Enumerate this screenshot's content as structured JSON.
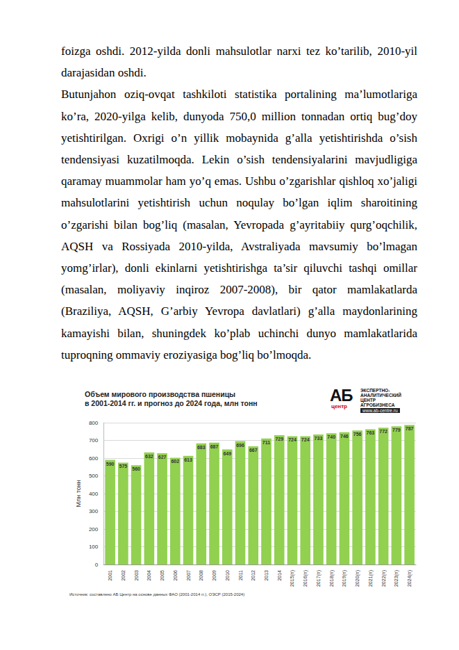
{
  "paragraphs": [
    "foizga oshdi. 2012-yilda donli mahsulotlar narxi tez ko’tarilib, 2010-yil darajasidan oshdi.",
    "Butunjahon oziq-ovqat tashkiloti statistika portalining ma’lumotlariga ko’ra, 2020-yilga kelib, dunyoda 750,0 million tonnadan ortiq bug’doy yetishtirilgan. Oxrigi o’n yillik mobaynida g’alla yetishtirishda o’sish tendensiyasi kuzatilmoqda. Lekin o’sish tendensiyalarini mavjudligiga qaramay muammolar ham yo’q emas. Ushbu o’zgarishlar qishloq xo’jaligi mahsulotlarini yetishtirish uchun noqulay bo’lgan iqlim sharoitining o’zgarishi bilan bog’liq (masalan, Yevropada g’ayritabiiy qurg’oqchilik, AQSH va Rossiyada 2010-yilda, Avstraliyada mavsumiy bo’lmagan yomg’irlar), donli ekinlarni yetishtirishga ta’sir qiluvchi tashqi omillar (masalan, moliyaviy inqiroz 2007-2008), bir qator mamlakatlarda (Braziliya, AQSH, G’arbiy Yevropa davlatlari) g’alla maydonlarining kamayishi bilan, shuningdek ko’plab uchinchi dunyo mamlakatlarida tuproqning ommaviy eroziyasiga bog’liq bo’lmoqda."
  ],
  "chart_data": {
    "type": "bar",
    "title": "Объем мирового производства пшеницы\nв 2001-2014 гг. и прогноз до 2024 года, млн тонн",
    "logo": {
      "mark": "АБ",
      "sub": "центр",
      "lines": [
        "ЭКСПЕРТНО-",
        "АНАЛИТИЧЕСКИЙ",
        "ЦЕНТР",
        "АГРОБИЗНЕСА"
      ],
      "url": "www.ab-centre.ru"
    },
    "ylabel": "Млн тонн",
    "categories": [
      "2001",
      "2002",
      "2003",
      "2004",
      "2005",
      "2006",
      "2007",
      "2008",
      "2009",
      "2010",
      "2011",
      "2012",
      "2013",
      "2014",
      "2015(п)",
      "2016(п)",
      "2017(п)",
      "2018(п)",
      "2019(п)",
      "2020(п)",
      "2021(п)",
      "2022(п)",
      "2023(п)",
      "2024(п)"
    ],
    "values": [
      590,
      575,
      560,
      632,
      627,
      602,
      613,
      683,
      687,
      649,
      696,
      667,
      711,
      729,
      724,
      724,
      733,
      740,
      746,
      756,
      763,
      772,
      779,
      787
    ],
    "color": "#92d050",
    "ylim": [
      0,
      800
    ],
    "yticks": [
      0,
      100,
      200,
      300,
      400,
      500,
      600,
      700,
      800
    ],
    "grid": true,
    "data_labels": true,
    "source": "Источник: составлено АБ Центр на основе данных ФАО (2001-2014 гг.), ОЭСР (2015-2024)"
  }
}
